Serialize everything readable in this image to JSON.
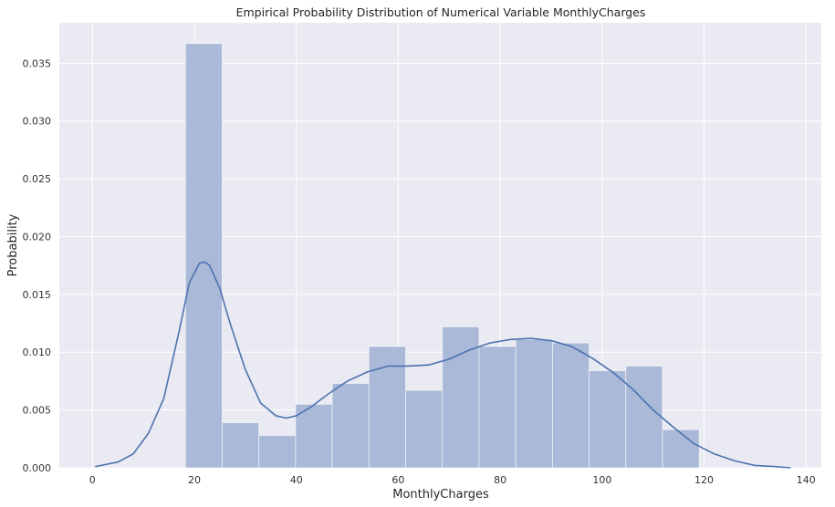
{
  "chart_data": {
    "type": "bar",
    "title": "Empirical Probability Distribution of Numerical Variable MonthlyCharges",
    "xlabel": "MonthlyCharges",
    "ylabel": "Probability",
    "xlim": [
      -6.5,
      143
    ],
    "ylim": [
      0,
      0.0385
    ],
    "xticks": [
      0,
      20,
      40,
      60,
      80,
      100,
      120,
      140
    ],
    "yticks": [
      0.0,
      0.005,
      0.01,
      0.015,
      0.02,
      0.025,
      0.03,
      0.035
    ],
    "ytick_labels": [
      "0.000",
      "0.005",
      "0.010",
      "0.015",
      "0.020",
      "0.025",
      "0.030",
      "0.035"
    ],
    "grid": true,
    "colors": {
      "background": "#EAEAF2",
      "bar": "#A9B9D7",
      "line": "#4C72B0",
      "grid": "#FFFFFF"
    },
    "histogram": {
      "bin_edges": [
        18.25,
        25.45,
        32.65,
        39.85,
        47.05,
        54.25,
        61.45,
        68.65,
        75.85,
        83.05,
        90.25,
        97.45,
        104.65,
        111.85,
        119.05
      ],
      "values": [
        0.0367,
        0.0039,
        0.0028,
        0.0055,
        0.0073,
        0.0105,
        0.0067,
        0.0122,
        0.0105,
        0.0111,
        0.0108,
        0.0084,
        0.0088,
        0.0033
      ]
    },
    "kde": {
      "x": [
        0.5,
        5,
        8,
        11,
        14,
        17,
        19,
        21,
        22,
        23,
        25,
        27,
        30,
        33,
        36,
        38,
        40,
        43,
        46,
        50,
        54,
        58,
        62,
        66,
        70,
        74,
        78,
        82,
        86,
        90,
        94,
        98,
        102,
        106,
        110,
        114,
        118,
        122,
        126,
        130,
        134,
        137
      ],
      "y": [
        0.0001,
        0.0005,
        0.0012,
        0.003,
        0.006,
        0.0118,
        0.016,
        0.0177,
        0.0178,
        0.0175,
        0.0155,
        0.0125,
        0.0085,
        0.0056,
        0.0045,
        0.0043,
        0.0045,
        0.0053,
        0.0063,
        0.0075,
        0.0083,
        0.0088,
        0.0088,
        0.0089,
        0.0094,
        0.0102,
        0.0108,
        0.0111,
        0.0112,
        0.011,
        0.0105,
        0.0095,
        0.0083,
        0.0068,
        0.005,
        0.0035,
        0.0021,
        0.0012,
        0.0006,
        0.0002,
        0.0001,
        0.0
      ]
    }
  }
}
